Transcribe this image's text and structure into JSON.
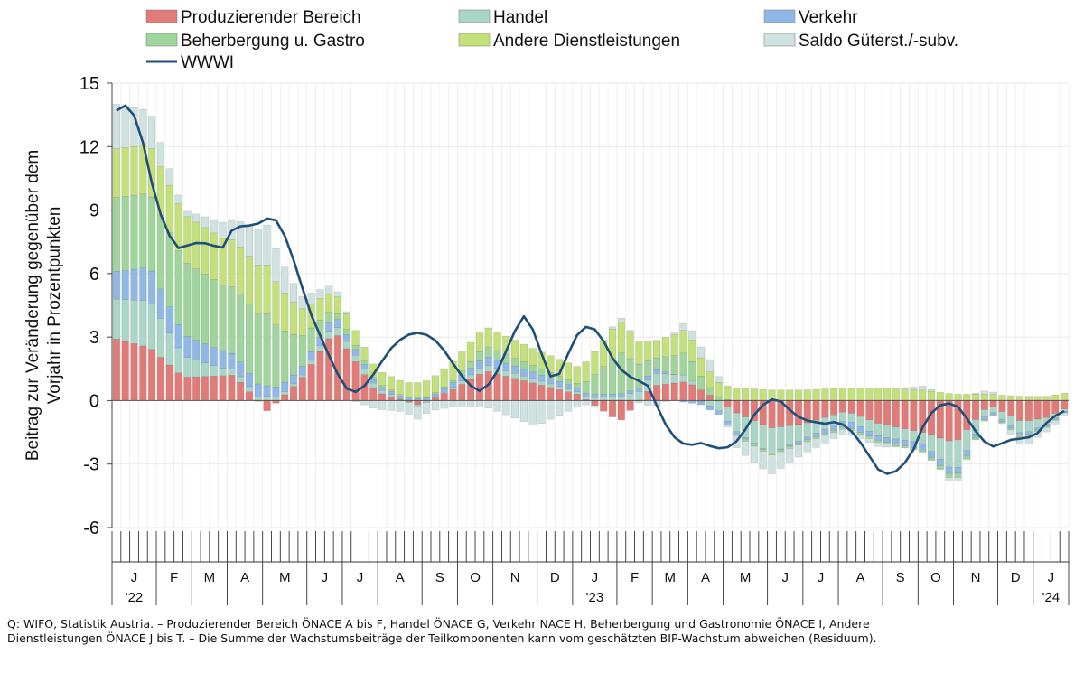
{
  "chart_data": {
    "type": "bar",
    "stacked": true,
    "ylabel": "Beitrag zur Veränderung gegenüber dem Vorjahr in Prozentpunkten",
    "ylim": [
      -6,
      15
    ],
    "yticks": [
      "15",
      "12",
      "9",
      "6",
      "3",
      "0",
      "-3",
      "-6"
    ],
    "grid": true,
    "legend_position": "top",
    "month_labels": [
      "J",
      "F",
      "M",
      "A",
      "M",
      "J",
      "J",
      "A",
      "S",
      "O",
      "N",
      "D",
      "J",
      "F",
      "M",
      "A",
      "M",
      "J",
      "J",
      "A",
      "S",
      "O",
      "N",
      "D",
      "J"
    ],
    "year_labels": [
      "'22",
      "'23",
      "'24"
    ],
    "weeks_per_month": [
      5,
      4,
      4,
      4,
      5,
      4,
      4,
      5,
      4,
      4,
      5,
      4,
      5,
      4,
      4,
      4,
      5,
      4,
      4,
      5,
      4,
      4,
      5,
      4,
      4
    ],
    "series_info": [
      {
        "name": "Produzierender Bereich",
        "color": "#e07b78"
      },
      {
        "name": "Handel",
        "color": "#a9d6c6"
      },
      {
        "name": "Verkehr",
        "color": "#8fb8e6"
      },
      {
        "name": "Beherbergung u. Gastro",
        "color": "#9fd49a"
      },
      {
        "name": "Andere Dienstleistungen",
        "color": "#c4e07a"
      },
      {
        "name": "Saldo Güterst./-subv.",
        "color": "#cfe2e2"
      }
    ],
    "line_series": {
      "name": "WWWI",
      "color": "#1f4e79"
    },
    "anchors": {
      "pb": [
        [
          0,
          2.9
        ],
        [
          4,
          2.5
        ],
        [
          8,
          1.1
        ],
        [
          14,
          1.2
        ],
        [
          18,
          -0.5
        ],
        [
          22,
          1.0
        ],
        [
          26,
          3.3
        ],
        [
          31,
          0.4
        ],
        [
          36,
          -0.2
        ],
        [
          40,
          0.5
        ],
        [
          44,
          1.4
        ],
        [
          50,
          0.8
        ],
        [
          55,
          0.3
        ],
        [
          60,
          -1.0
        ],
        [
          64,
          0.7
        ],
        [
          68,
          0.9
        ],
        [
          71,
          0.2
        ],
        [
          74,
          -0.6
        ],
        [
          78,
          -1.3
        ],
        [
          82,
          -1.1
        ],
        [
          87,
          -0.5
        ],
        [
          91,
          -1.1
        ],
        [
          96,
          -1.5
        ],
        [
          100,
          -2.0
        ],
        [
          104,
          -0.2
        ],
        [
          108,
          -1.0
        ],
        [
          111,
          -0.8
        ],
        [
          113,
          -0.4
        ]
      ],
      "ha": [
        [
          0,
          1.9
        ],
        [
          4,
          2.2
        ],
        [
          8,
          1.0
        ],
        [
          13,
          0.3
        ],
        [
          18,
          0.2
        ],
        [
          22,
          0.1
        ],
        [
          26,
          0.4
        ],
        [
          31,
          0.2
        ],
        [
          36,
          -0.1
        ],
        [
          40,
          0.1
        ],
        [
          44,
          0.3
        ],
        [
          50,
          0.2
        ],
        [
          55,
          0.1
        ],
        [
          60,
          0.2
        ],
        [
          64,
          0.6
        ],
        [
          68,
          0.3
        ],
        [
          71,
          -0.3
        ],
        [
          74,
          -0.9
        ],
        [
          78,
          -1.2
        ],
        [
          82,
          -0.7
        ],
        [
          87,
          -0.4
        ],
        [
          91,
          -0.6
        ],
        [
          96,
          -0.5
        ],
        [
          100,
          -1.4
        ],
        [
          104,
          -0.2
        ],
        [
          108,
          -0.6
        ],
        [
          111,
          -0.3
        ],
        [
          113,
          -0.1
        ]
      ],
      "ve": [
        [
          0,
          1.3
        ],
        [
          4,
          1.6
        ],
        [
          8,
          1.0
        ],
        [
          13,
          0.8
        ],
        [
          18,
          0.5
        ],
        [
          22,
          0.4
        ],
        [
          26,
          0.4
        ],
        [
          31,
          0.15
        ],
        [
          36,
          0.1
        ],
        [
          40,
          0.2
        ],
        [
          44,
          0.4
        ],
        [
          50,
          0.3
        ],
        [
          55,
          0.2
        ],
        [
          60,
          0.1
        ],
        [
          64,
          0.2
        ],
        [
          68,
          -0.1
        ],
        [
          71,
          -0.2
        ],
        [
          74,
          -0.1
        ],
        [
          78,
          0.0
        ],
        [
          82,
          -0.1
        ],
        [
          87,
          -0.3
        ],
        [
          91,
          -0.2
        ],
        [
          96,
          -0.3
        ],
        [
          100,
          -0.3
        ],
        [
          104,
          -0.1
        ],
        [
          108,
          -0.1
        ],
        [
          111,
          -0.1
        ],
        [
          113,
          -0.05
        ]
      ],
      "bg": [
        [
          0,
          3.5
        ],
        [
          4,
          3.5
        ],
        [
          8,
          3.5
        ],
        [
          13,
          3.1
        ],
        [
          18,
          3.4
        ],
        [
          22,
          1.5
        ],
        [
          26,
          0.3
        ],
        [
          31,
          0.1
        ],
        [
          36,
          0.05
        ],
        [
          40,
          0.1
        ],
        [
          44,
          0.5
        ],
        [
          50,
          0.3
        ],
        [
          55,
          0.2
        ],
        [
          60,
          2.0
        ],
        [
          64,
          0.5
        ],
        [
          68,
          1.1
        ],
        [
          71,
          0.3
        ],
        [
          74,
          -0.1
        ],
        [
          78,
          -0.1
        ],
        [
          82,
          -0.1
        ],
        [
          87,
          -0.1
        ],
        [
          91,
          -0.1
        ],
        [
          96,
          -0.1
        ],
        [
          100,
          -0.2
        ],
        [
          104,
          -0.05
        ],
        [
          108,
          -0.1
        ],
        [
          111,
          -0.05
        ],
        [
          113,
          -0.02
        ]
      ],
      "ad": [
        [
          0,
          2.3
        ],
        [
          4,
          2.3
        ],
        [
          8,
          2.2
        ],
        [
          13,
          2.2
        ],
        [
          18,
          2.3
        ],
        [
          22,
          1.3
        ],
        [
          26,
          0.8
        ],
        [
          31,
          0.6
        ],
        [
          36,
          0.7
        ],
        [
          40,
          0.9
        ],
        [
          44,
          0.9
        ],
        [
          50,
          0.8
        ],
        [
          55,
          0.8
        ],
        [
          60,
          1.5
        ],
        [
          64,
          0.8
        ],
        [
          68,
          1.1
        ],
        [
          71,
          0.7
        ],
        [
          74,
          0.6
        ],
        [
          78,
          0.5
        ],
        [
          82,
          0.5
        ],
        [
          87,
          0.6
        ],
        [
          91,
          0.6
        ],
        [
          96,
          0.5
        ],
        [
          100,
          0.3
        ],
        [
          104,
          0.3
        ],
        [
          108,
          0.2
        ],
        [
          111,
          0.2
        ],
        [
          113,
          0.35
        ]
      ],
      "sa": [
        [
          0,
          2.1
        ],
        [
          4,
          1.6
        ],
        [
          8,
          0.2
        ],
        [
          13,
          0.8
        ],
        [
          18,
          1.9
        ],
        [
          22,
          0.6
        ],
        [
          26,
          0.3
        ],
        [
          31,
          -0.4
        ],
        [
          36,
          -0.6
        ],
        [
          40,
          -0.3
        ],
        [
          44,
          -0.3
        ],
        [
          50,
          -1.2
        ],
        [
          55,
          -0.3
        ],
        [
          60,
          0.2
        ],
        [
          64,
          -0.3
        ],
        [
          68,
          0.4
        ],
        [
          71,
          0.6
        ],
        [
          74,
          -0.6
        ],
        [
          78,
          -0.9
        ],
        [
          82,
          -0.5
        ],
        [
          87,
          -0.2
        ],
        [
          91,
          -0.2
        ],
        [
          96,
          0.2
        ],
        [
          100,
          -0.2
        ],
        [
          104,
          0.2
        ],
        [
          108,
          -0.4
        ],
        [
          111,
          -0.2
        ],
        [
          113,
          -0.15
        ]
      ]
    },
    "wwwi": [
      [
        0,
        13.7
      ],
      [
        2,
        14.0
      ],
      [
        4,
        13.1
      ],
      [
        7,
        9.5
      ],
      [
        9,
        8.0
      ],
      [
        11,
        7.2
      ],
      [
        15,
        7.5
      ],
      [
        19,
        7.2
      ],
      [
        21,
        8.2
      ],
      [
        25,
        8.3
      ],
      [
        27,
        8.6
      ],
      [
        29,
        8.5
      ],
      [
        31,
        7.3
      ],
      [
        33,
        5.6
      ],
      [
        35,
        4.0
      ],
      [
        37,
        2.8
      ],
      [
        39,
        1.6
      ],
      [
        41,
        0.6
      ],
      [
        43,
        0.4
      ],
      [
        45,
        0.8
      ],
      [
        47,
        1.6
      ],
      [
        49,
        2.4
      ],
      [
        51,
        2.9
      ],
      [
        53,
        3.2
      ],
      [
        55,
        3.2
      ],
      [
        57,
        2.9
      ],
      [
        59,
        2.3
      ],
      [
        61,
        1.5
      ],
      [
        63,
        0.8
      ],
      [
        65,
        0.45
      ],
      [
        66,
        0.5
      ],
      [
        68,
        1.2
      ],
      [
        70,
        2.4
      ],
      [
        72,
        3.6
      ],
      [
        73,
        4.0
      ],
      [
        74,
        3.8
      ],
      [
        76,
        2.5
      ],
      [
        77,
        1.4
      ],
      [
        78,
        1.1
      ],
      [
        79,
        1.0
      ],
      [
        81,
        2.2
      ],
      [
        83,
        3.3
      ],
      [
        85,
        3.6
      ],
      [
        87,
        3.0
      ],
      [
        89,
        2.0
      ],
      [
        91,
        1.3
      ],
      [
        93,
        1.0
      ],
      [
        95,
        0.8
      ],
      [
        96,
        0.5
      ],
      [
        97,
        -0.3
      ],
      [
        99,
        -1.4
      ],
      [
        101,
        -2.0
      ],
      [
        103,
        -2.1
      ],
      [
        105,
        -2.0
      ],
      [
        107,
        -2.2
      ],
      [
        109,
        -2.3
      ],
      [
        111,
        -2.0
      ],
      [
        113,
        -1.3
      ],
      [
        115,
        -0.4
      ],
      [
        117,
        0.0
      ],
      [
        118,
        0.1
      ],
      [
        119,
        0.0
      ],
      [
        121,
        -0.5
      ],
      [
        123,
        -0.9
      ],
      [
        125,
        -1.0
      ],
      [
        127,
        -1.1
      ],
      [
        129,
        -1.0
      ],
      [
        131,
        -1.2
      ],
      [
        133,
        -1.8
      ],
      [
        135,
        -2.6
      ],
      [
        137,
        -3.4
      ],
      [
        139,
        -3.5
      ],
      [
        141,
        -3.1
      ],
      [
        143,
        -2.3
      ],
      [
        145,
        -1.0
      ],
      [
        147,
        -0.3
      ],
      [
        149,
        -0.1
      ],
      [
        151,
        -0.3
      ],
      [
        153,
        -1.0
      ],
      [
        155,
        -1.8
      ],
      [
        157,
        -2.2
      ],
      [
        159,
        -2.0
      ],
      [
        161,
        -1.8
      ],
      [
        163,
        -1.8
      ],
      [
        165,
        -1.6
      ],
      [
        167,
        -1.0
      ],
      [
        169,
        -0.6
      ],
      [
        170,
        -0.5
      ]
    ]
  },
  "legend": {
    "items": [
      {
        "label": "Produzierender Bereich",
        "color": "#e07b78",
        "kind": "box"
      },
      {
        "label": "Handel",
        "color": "#a9d6c6",
        "kind": "box"
      },
      {
        "label": "Verkehr",
        "color": "#8fb8e6",
        "kind": "box"
      },
      {
        "label": "Beherbergung u. Gastro",
        "color": "#9fd49a",
        "kind": "box"
      },
      {
        "label": "Andere Dienstleistungen",
        "color": "#c4e07a",
        "kind": "box"
      },
      {
        "label": "Saldo Güterst./-subv.",
        "color": "#cfe2e2",
        "kind": "box"
      },
      {
        "label": "WWWI",
        "color": "#1f4e79",
        "kind": "line"
      }
    ]
  },
  "note": {
    "line1": "Q: WIFO, Statistik Austria. – Produzierender Bereich ÖNACE A bis F, Handel ÖNACE G, Verkehr NACE H, Beherbergung und Gastronomie ÖNACE I, Andere",
    "line2": "Dienstleistungen ÖNACE  J bis T. – Die Summe der Wachstumsbeiträge der Teilkomponenten kann vom geschätzten BIP-Wachstum abweichen (Residuum)."
  }
}
